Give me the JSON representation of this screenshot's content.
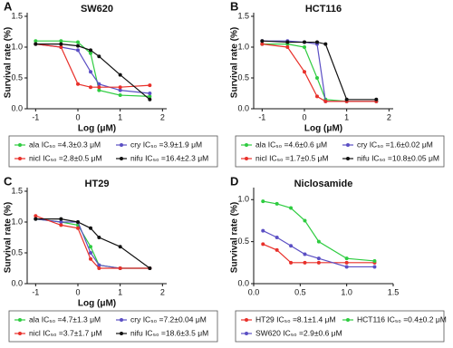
{
  "chart_data": [
    {
      "type": "line",
      "panel": "A",
      "title": "SW620",
      "x_label": "Log (μM)",
      "y_label": "Survival rate (%)",
      "x": [
        -1,
        -0.4,
        0,
        0.3,
        0.5,
        1,
        1.7
      ],
      "xlim": [
        -1.2,
        2.1
      ],
      "xticks": [
        -1,
        0,
        1,
        2
      ],
      "ylim": [
        0,
        1.5
      ],
      "yticks": [
        {
          "value": 0,
          "label": "0.0"
        },
        {
          "value": 0.5,
          "label": "0.5"
        },
        {
          "value": 1,
          "label": "1.0"
        },
        {
          "value": 1.5,
          "label": "1.5"
        }
      ],
      "series": [
        {
          "name": "ala IC₅₀ =4.3±0.3 μM",
          "color": "#2ecc40",
          "values": [
            1.1,
            1.1,
            1.08,
            0.9,
            0.3,
            0.22,
            0.2
          ]
        },
        {
          "name": "cry IC₅₀ =3.9±1.9 μM",
          "color": "#5b4fc4",
          "values": [
            1.05,
            1.0,
            0.95,
            0.6,
            0.4,
            0.3,
            0.25
          ]
        },
        {
          "name": "nicl IC₅₀ =2.8±0.5 μM",
          "color": "#e8302a",
          "values": [
            1.05,
            1.0,
            0.4,
            0.35,
            0.35,
            0.35,
            0.38
          ]
        },
        {
          "name": "nifu IC₅₀ =16.4±2.3 μM",
          "color": "#111111",
          "values": [
            1.05,
            1.05,
            1.02,
            0.95,
            0.85,
            0.55,
            0.15
          ]
        }
      ]
    },
    {
      "type": "line",
      "panel": "B",
      "title": "HCT116",
      "x_label": "Log (μM)",
      "y_label": "Survival rate (%)",
      "x": [
        -1,
        -0.4,
        0,
        0.3,
        0.5,
        1,
        1.7
      ],
      "xlim": [
        -1.2,
        2.1
      ],
      "xticks": [
        -1,
        0,
        1,
        2
      ],
      "ylim": [
        0,
        1.5
      ],
      "yticks": [
        {
          "value": 0,
          "label": "0.0"
        },
        {
          "value": 0.5,
          "label": "0.5"
        },
        {
          "value": 1,
          "label": "1.0"
        },
        {
          "value": 1.5,
          "label": "1.5"
        }
      ],
      "series": [
        {
          "name": "ala IC₅₀ =4.6±0.6 μM",
          "color": "#2ecc40",
          "values": [
            1.05,
            1.05,
            1.0,
            0.5,
            0.15,
            0.12,
            0.12
          ]
        },
        {
          "name": "cry IC₅₀ =1.6±0.02 μM",
          "color": "#5b4fc4",
          "values": [
            1.1,
            1.1,
            1.08,
            1.05,
            0.12,
            0.12,
            0.12
          ]
        },
        {
          "name": "nicl IC₅₀ =1.7±0.5 μM",
          "color": "#e8302a",
          "values": [
            1.05,
            1.0,
            0.6,
            0.2,
            0.12,
            0.12,
            0.12
          ]
        },
        {
          "name": "nifu IC₅₀ =10.8±0.05 μM",
          "color": "#111111",
          "values": [
            1.1,
            1.08,
            1.08,
            1.08,
            1.05,
            0.15,
            0.15
          ]
        }
      ]
    },
    {
      "type": "line",
      "panel": "C",
      "title": "HT29",
      "x_label": "Log (μM)",
      "y_label": "Survival rate (%)",
      "x": [
        -1,
        -0.4,
        0,
        0.3,
        0.5,
        1,
        1.7
      ],
      "xlim": [
        -1.2,
        2.1
      ],
      "xticks": [
        -1,
        0,
        1,
        2
      ],
      "ylim": [
        0,
        1.5
      ],
      "yticks": [
        {
          "value": 0,
          "label": "0.0"
        },
        {
          "value": 0.5,
          "label": "0.5"
        },
        {
          "value": 1,
          "label": "1.0"
        },
        {
          "value": 1.5,
          "label": "1.5"
        }
      ],
      "series": [
        {
          "name": "ala IC₅₀ =4.7±1.3 μM",
          "color": "#2ecc40",
          "values": [
            1.05,
            1.0,
            0.95,
            0.6,
            0.3,
            0.25,
            0.25
          ]
        },
        {
          "name": "cry IC₅₀ =7.2±0.04 μM",
          "color": "#5b4fc4",
          "values": [
            1.05,
            1.0,
            1.0,
            0.5,
            0.3,
            0.25,
            0.25
          ]
        },
        {
          "name": "nicl IC₅₀ =3.7±1.7 μM",
          "color": "#e8302a",
          "values": [
            1.1,
            0.95,
            0.9,
            0.4,
            0.25,
            0.25,
            0.25
          ]
        },
        {
          "name": "nifu IC₅₀ =18.6±3.5 μM",
          "color": "#111111",
          "values": [
            1.05,
            1.05,
            1.0,
            0.9,
            0.75,
            0.6,
            0.25
          ]
        }
      ]
    },
    {
      "type": "line",
      "panel": "D",
      "title": "Niclosamide",
      "y_label": "Survival rate (%)",
      "x": [
        0.1,
        0.25,
        0.4,
        0.55,
        0.7,
        1.0,
        1.3
      ],
      "xlim": [
        0,
        1.5
      ],
      "xticks": [
        {
          "value": 0,
          "label": "0.0"
        },
        {
          "value": 0.5,
          "label": "0.5"
        },
        {
          "value": 1,
          "label": "1.0"
        },
        {
          "value": 1.5,
          "label": "1.5"
        }
      ],
      "ylim": [
        0,
        1.1
      ],
      "yticks": [
        {
          "value": 0,
          "label": "0.0"
        },
        {
          "value": 0.5,
          "label": "0.5"
        },
        {
          "value": 1,
          "label": "1.0"
        }
      ],
      "series": [
        {
          "name": "HT29 IC₅₀ =8.1±1.4 μM",
          "color": "#e8302a",
          "values": [
            0.47,
            0.4,
            0.25,
            0.25,
            0.25,
            0.25,
            0.25
          ]
        },
        {
          "name": "HCT116 IC₅₀ =0.4±0.2 μM",
          "color": "#2ecc40",
          "values": [
            0.98,
            0.95,
            0.9,
            0.75,
            0.5,
            0.3,
            0.27
          ]
        },
        {
          "name": "SW620 IC₅₀ =2.9±0.6 μM",
          "color": "#5b4fc4",
          "values": [
            0.63,
            0.55,
            0.45,
            0.35,
            0.3,
            0.2,
            0.2
          ]
        }
      ]
    }
  ]
}
